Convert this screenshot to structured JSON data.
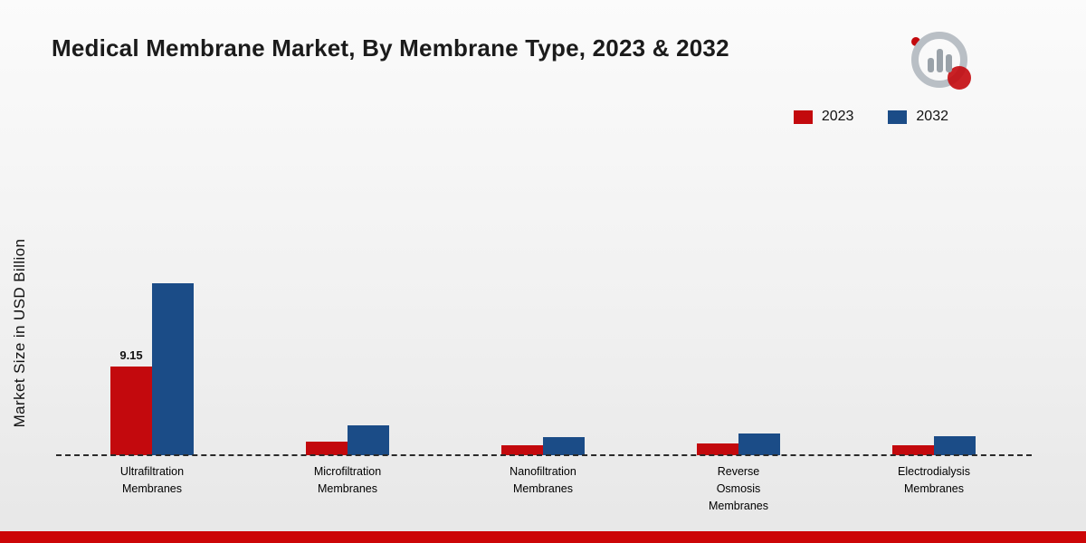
{
  "title": "Medical Membrane Market, By Membrane Type, 2023 & 2032",
  "y_axis_label": "Market Size in USD Billion",
  "legend": {
    "items": [
      {
        "label": "2023",
        "color": "#c3090d"
      },
      {
        "label": "2032",
        "color": "#1b4c87"
      }
    ]
  },
  "footer": {
    "band_color": "#cc0607"
  },
  "chart_data": {
    "type": "bar",
    "title": "Medical Membrane Market, By Membrane Type, 2023 & 2032",
    "ylabel": "Market Size in USD Billion",
    "xlabel": "",
    "ylim": [
      0,
      20
    ],
    "grid": false,
    "baseline_style": "dashed",
    "legend_position": "top-right",
    "categories": [
      "Ultrafiltration Membranes",
      "Microfiltration Membranes",
      "Nanofiltration Membranes",
      "Reverse Osmosis Membranes",
      "Electrodialysis Membranes"
    ],
    "category_label_lines": [
      [
        "Ultrafiltration",
        "Membranes"
      ],
      [
        "Microfiltration",
        "Membranes"
      ],
      [
        "Nanofiltration",
        "Membranes"
      ],
      [
        "Reverse",
        "Osmosis",
        "Membranes"
      ],
      [
        "Electrodialysis",
        "Membranes"
      ]
    ],
    "series": [
      {
        "name": "2023",
        "color": "#c3090d",
        "values": [
          9.15,
          1.4,
          1.0,
          1.2,
          1.0
        ]
      },
      {
        "name": "2032",
        "color": "#1b4c87",
        "values": [
          17.8,
          3.1,
          1.9,
          2.2,
          2.0
        ]
      }
    ],
    "bar_value_labels": [
      [
        "9.15",
        "",
        "",
        "",
        ""
      ],
      [
        "",
        "",
        "",
        "",
        ""
      ]
    ]
  }
}
